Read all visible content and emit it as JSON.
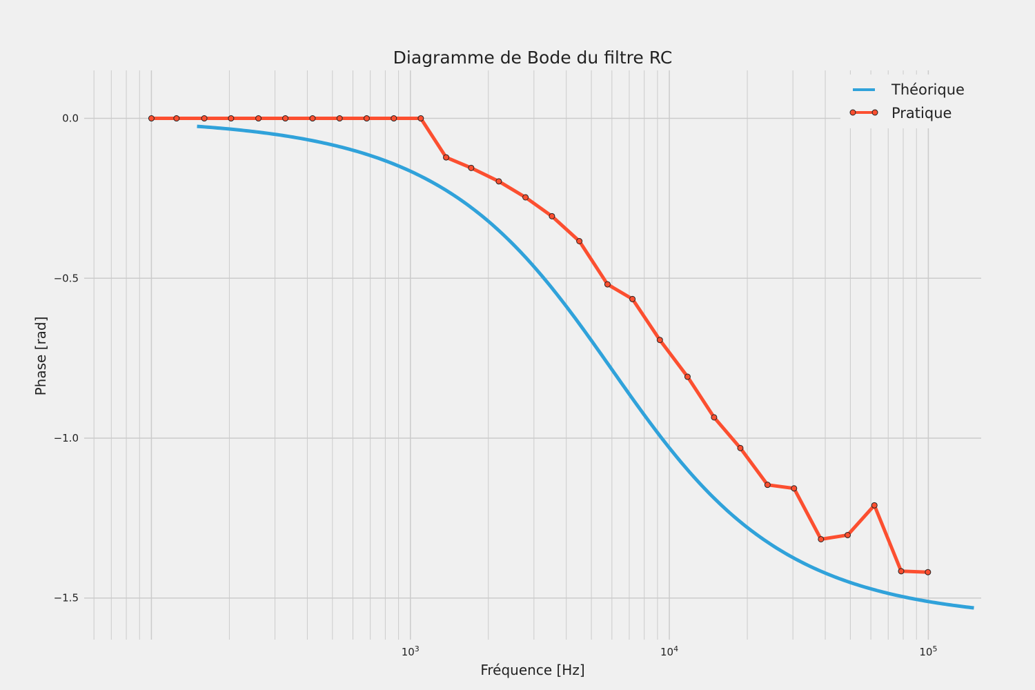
{
  "chart_data": {
    "type": "line",
    "title": "Diagramme de Bode du filtre RC",
    "xlabel": "Fréquence [Hz]",
    "ylabel": "Phase [rad]",
    "xscale": "log",
    "xlim": [
      55,
      160000
    ],
    "ylim": [
      -1.63,
      0.15
    ],
    "x_ticks": [
      {
        "value": 1000,
        "base": "10",
        "exp": "3"
      },
      {
        "value": 10000,
        "base": "10",
        "exp": "4"
      },
      {
        "value": 100000,
        "base": "10",
        "exp": "5"
      }
    ],
    "y_ticks": [
      {
        "value": 0.0,
        "label": "0.0"
      },
      {
        "value": -0.5,
        "label": "−0.5"
      },
      {
        "value": -1.0,
        "label": "−1.0"
      },
      {
        "value": -1.5,
        "label": "−1.5"
      }
    ],
    "grid": true,
    "legend_position": "top-right",
    "series": [
      {
        "name": "Théorique",
        "color": "#30a2da",
        "style": "line",
        "cutoff_frequency_hz": 6000,
        "x_range": [
          150,
          150000
        ]
      },
      {
        "name": "Pratique",
        "color": "#fc4f30",
        "style": "line-markers",
        "points": [
          [
            100,
            0.0
          ],
          [
            125,
            0.0
          ],
          [
            160,
            0.0
          ],
          [
            203,
            0.0
          ],
          [
            259,
            0.0
          ],
          [
            329,
            0.0
          ],
          [
            419,
            0.0
          ],
          [
            533,
            0.0
          ],
          [
            678,
            0.0
          ],
          [
            863,
            0.0
          ],
          [
            1097,
            0.0
          ],
          [
            1374,
            -0.122
          ],
          [
            1717,
            -0.155
          ],
          [
            2195,
            -0.197
          ],
          [
            2783,
            -0.247
          ],
          [
            3521,
            -0.306
          ],
          [
            4492,
            -0.384
          ],
          [
            5770,
            -0.519
          ],
          [
            7203,
            -0.565
          ],
          [
            9190,
            -0.693
          ],
          [
            11755,
            -0.808
          ],
          [
            14885,
            -0.935
          ],
          [
            18801,
            -1.031
          ],
          [
            23939,
            -1.146
          ],
          [
            30302,
            -1.157
          ],
          [
            38499,
            -1.316
          ],
          [
            48819,
            -1.303
          ],
          [
            61915,
            -1.21
          ],
          [
            78537,
            -1.416
          ],
          [
            99652,
            -1.419
          ]
        ]
      }
    ]
  }
}
